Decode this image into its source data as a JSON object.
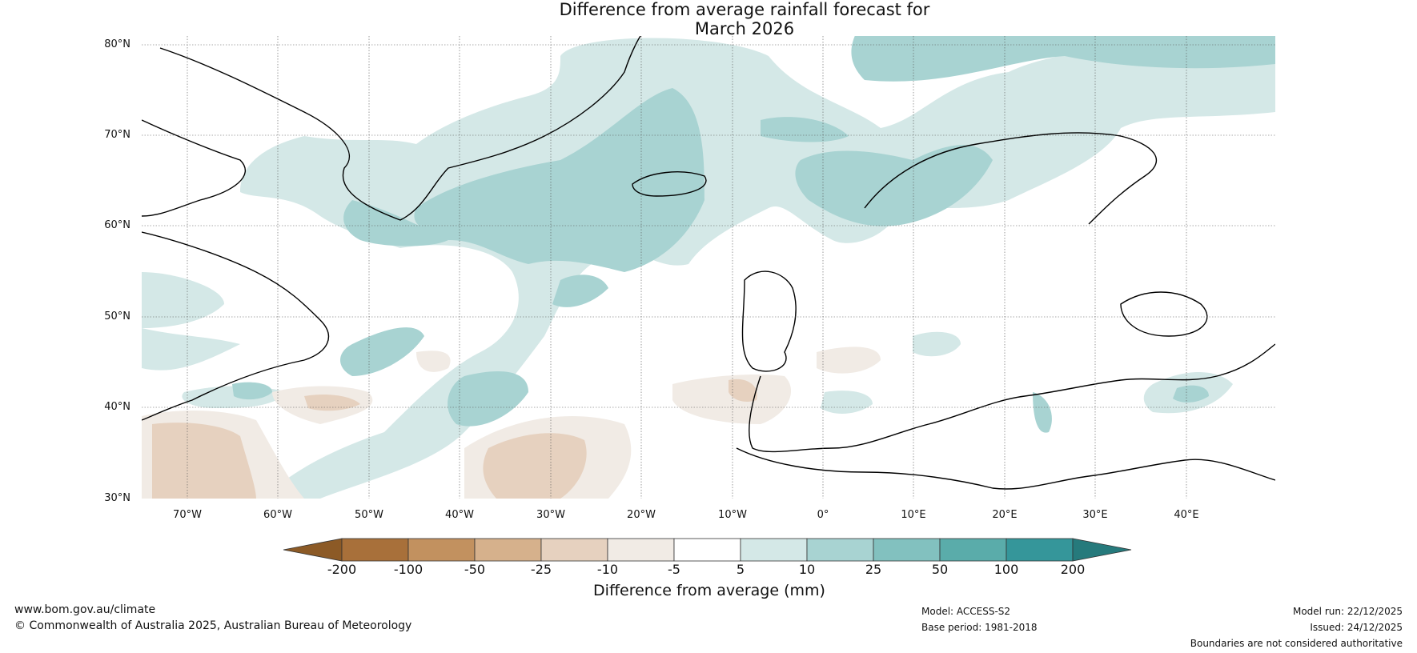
{
  "title_line1": "Difference from average rainfall forecast for",
  "title_line2": "March 2026",
  "lat_labels": [
    "80°N",
    "70°N",
    "60°N",
    "50°N",
    "40°N",
    "30°N"
  ],
  "lon_labels": [
    "70°W",
    "60°W",
    "50°W",
    "40°W",
    "30°W",
    "20°W",
    "10°W",
    "0°",
    "10°E",
    "20°E",
    "30°E",
    "40°E"
  ],
  "colorbar": {
    "title": "Difference from average (mm)",
    "ticks": [
      "-200",
      "-100",
      "-50",
      "-25",
      "-10",
      "-5",
      "5",
      "10",
      "25",
      "50",
      "100",
      "200"
    ],
    "colors": [
      "#8c5a26",
      "#a8703a",
      "#c2915f",
      "#d6b18c",
      "#e6d1bf",
      "#f1ebe5",
      "#ffffff",
      "#d4e8e7",
      "#a8d3d2",
      "#82c1bf",
      "#5aacaa",
      "#35969a",
      "#267a7c"
    ]
  },
  "footer": {
    "url": "www.bom.gov.au/climate",
    "copyright": "© Commonwealth of Australia 2025, Australian Bureau of Meteorology",
    "model": "Model: ACCESS-S2",
    "base_period": "Base period: 1981-2018",
    "model_run": "Model run: 22/12/2025",
    "issued": "Issued: 24/12/2025",
    "disclaimer": "Boundaries are not considered authoritative"
  }
}
